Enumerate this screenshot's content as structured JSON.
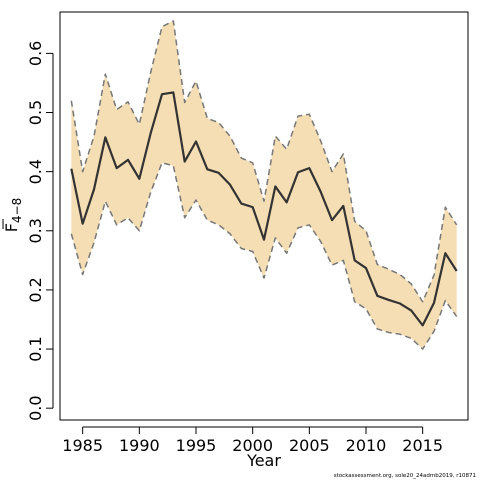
{
  "chart_data": {
    "type": "line",
    "title": "",
    "xlabel": "Year",
    "ylabel_main": "F",
    "ylabel_sub": "4−8",
    "xlim": [
      1983.0,
      2019.0
    ],
    "ylim": [
      -0.02,
      0.67
    ],
    "xticks": [
      1985,
      1990,
      1995,
      2000,
      2005,
      2010,
      2015
    ],
    "yticks": [
      0.0,
      0.1,
      0.2,
      0.3,
      0.4,
      0.5,
      0.6
    ],
    "ytick_labels": [
      "0.0",
      "0.1",
      "0.2",
      "0.3",
      "0.4",
      "0.5",
      "0.6"
    ],
    "grid": false,
    "x": [
      1984,
      1985,
      1986,
      1987,
      1988,
      1989,
      1990,
      1991,
      1992,
      1993,
      1994,
      1995,
      1996,
      1997,
      1998,
      1999,
      2000,
      2001,
      2002,
      2003,
      2004,
      2005,
      2006,
      2007,
      2008,
      2009,
      2010,
      2011,
      2012,
      2013,
      2014,
      2015,
      2016,
      2017,
      2018
    ],
    "series": [
      {
        "role": "estimate",
        "values": [
          0.405,
          0.312,
          0.37,
          0.458,
          0.406,
          0.42,
          0.388,
          0.465,
          0.531,
          0.534,
          0.417,
          0.451,
          0.404,
          0.398,
          0.378,
          0.346,
          0.34,
          0.285,
          0.375,
          0.348,
          0.399,
          0.406,
          0.366,
          0.318,
          0.342,
          0.25,
          0.237,
          0.19,
          0.183,
          0.177,
          0.165,
          0.14,
          0.178,
          0.262,
          0.232
        ],
        "color": "#333333"
      },
      {
        "role": "upper",
        "values": [
          0.52,
          0.4,
          0.46,
          0.565,
          0.505,
          0.518,
          0.48,
          0.568,
          0.645,
          0.655,
          0.517,
          0.553,
          0.49,
          0.483,
          0.46,
          0.423,
          0.415,
          0.35,
          0.46,
          0.438,
          0.494,
          0.497,
          0.452,
          0.4,
          0.43,
          0.316,
          0.3,
          0.243,
          0.235,
          0.226,
          0.21,
          0.18,
          0.225,
          0.34,
          0.31
        ],
        "color": "#777777"
      },
      {
        "role": "lower",
        "values": [
          0.295,
          0.226,
          0.28,
          0.35,
          0.31,
          0.322,
          0.3,
          0.365,
          0.415,
          0.41,
          0.322,
          0.352,
          0.318,
          0.31,
          0.295,
          0.27,
          0.265,
          0.22,
          0.288,
          0.262,
          0.305,
          0.31,
          0.282,
          0.242,
          0.25,
          0.18,
          0.168,
          0.134,
          0.128,
          0.125,
          0.118,
          0.1,
          0.13,
          0.182,
          0.155
        ],
        "color": "#777777"
      }
    ],
    "band_color": "#f5deb3",
    "footer": "stockassessment.org, sole20_24admb2019, r10871"
  }
}
